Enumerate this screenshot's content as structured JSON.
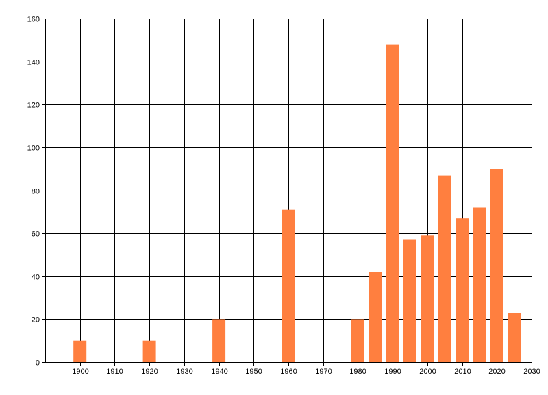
{
  "chart_data": {
    "type": "bar",
    "x": [
      1900,
      1920,
      1940,
      1960,
      1980,
      1985,
      1990,
      1995,
      2000,
      2005,
      2010,
      2015,
      2020,
      2025
    ],
    "values": [
      10,
      10,
      20,
      71,
      20,
      42,
      148,
      57,
      59,
      87,
      67,
      72,
      90,
      23
    ],
    "xlim": [
      1890,
      2030
    ],
    "ylim": [
      0,
      160
    ],
    "x_ticks": [
      1900,
      1910,
      1920,
      1930,
      1940,
      1950,
      1960,
      1970,
      1980,
      1990,
      2000,
      2010,
      2020,
      2030
    ],
    "y_ticks": [
      0,
      20,
      40,
      60,
      80,
      100,
      120,
      140,
      160
    ],
    "grid": true,
    "legend": "none",
    "bar_color": "#ff7f3f",
    "title": "",
    "xlabel": "",
    "ylabel": ""
  }
}
